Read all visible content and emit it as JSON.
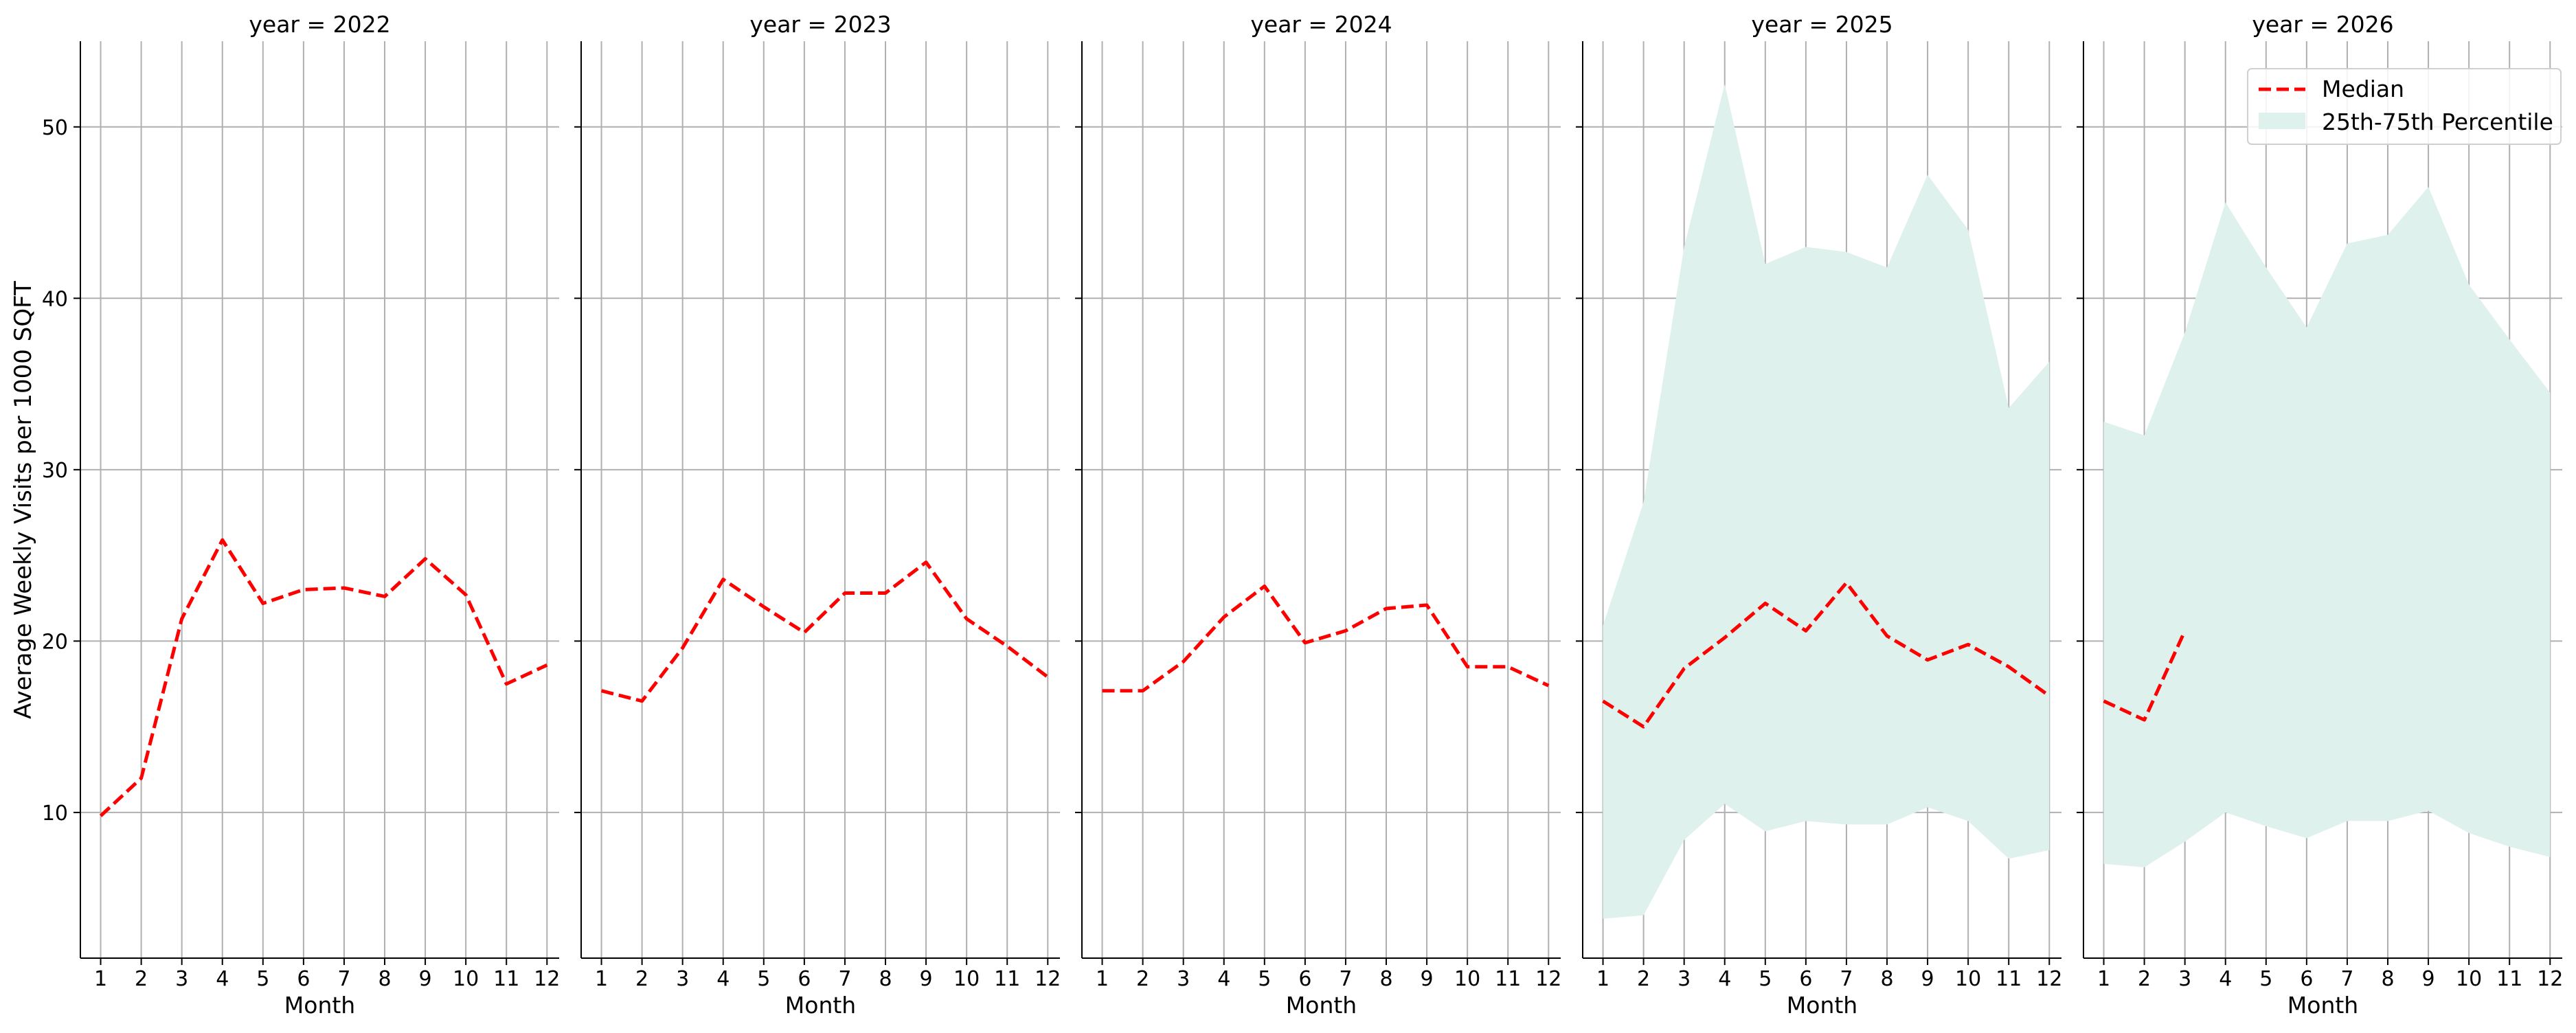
{
  "chart_data": {
    "type": "line",
    "ylabel": "Average Weekly Visits per 1000 SQFT",
    "xlabel": "Month",
    "x_ticks": [
      1,
      2,
      3,
      4,
      5,
      6,
      7,
      8,
      9,
      10,
      11,
      12
    ],
    "y_ticks": [
      10,
      20,
      30,
      40,
      50
    ],
    "ylim": [
      1.5,
      55
    ],
    "xlim": [
      0.5,
      12.3
    ],
    "grid": true,
    "legend": {
      "position": "top-right",
      "panel": 4,
      "entries": [
        {
          "label": "Median",
          "style": "dashed-line"
        },
        {
          "label": "25th-75th Percentile",
          "style": "filled-band"
        }
      ]
    },
    "colors": {
      "median": "#ff0000",
      "band": "#dff1ec",
      "grid": "#b0b0b0"
    },
    "panels": [
      {
        "title": "year = 2022",
        "median": [
          9.8,
          12.0,
          21.3,
          25.9,
          22.2,
          23.0,
          23.1,
          22.6,
          24.8,
          22.7,
          17.5,
          18.6
        ],
        "p25": [],
        "p75": []
      },
      {
        "title": "year = 2023",
        "median": [
          17.1,
          16.5,
          19.6,
          23.6,
          22.0,
          20.5,
          22.8,
          22.8,
          24.6,
          21.3,
          19.7,
          17.9
        ],
        "p25": [],
        "p75": []
      },
      {
        "title": "year = 2024",
        "median": [
          17.1,
          17.1,
          18.8,
          21.4,
          23.2,
          19.9,
          20.6,
          21.9,
          22.1,
          18.5,
          18.5,
          17.4
        ],
        "p25": [],
        "p75": []
      },
      {
        "title": "year = 2025",
        "median": [
          16.5,
          15.0,
          18.4,
          20.2,
          22.2,
          20.6,
          23.4,
          20.3,
          18.9,
          19.8,
          18.5,
          16.8
        ],
        "p25": [
          3.8,
          4.0,
          8.4,
          10.5,
          8.9,
          9.5,
          9.3,
          9.3,
          10.3,
          9.5,
          7.3,
          7.8
        ],
        "p75": [
          20.9,
          28.1,
          43.0,
          52.5,
          42.0,
          43.0,
          42.7,
          41.8,
          47.2,
          44.0,
          33.6,
          36.3
        ]
      },
      {
        "title": "year = 2026",
        "median": [
          16.5,
          15.4,
          20.6
        ],
        "p25": [
          7.0,
          6.8,
          8.3,
          10.0,
          9.2,
          8.5,
          9.5,
          9.5,
          10.1,
          8.8,
          8.0,
          7.4
        ],
        "p75": [
          32.8,
          32.0,
          38.0,
          45.6,
          41.8,
          38.3,
          43.2,
          43.7,
          46.5,
          40.8,
          37.6,
          34.5
        ]
      }
    ]
  }
}
